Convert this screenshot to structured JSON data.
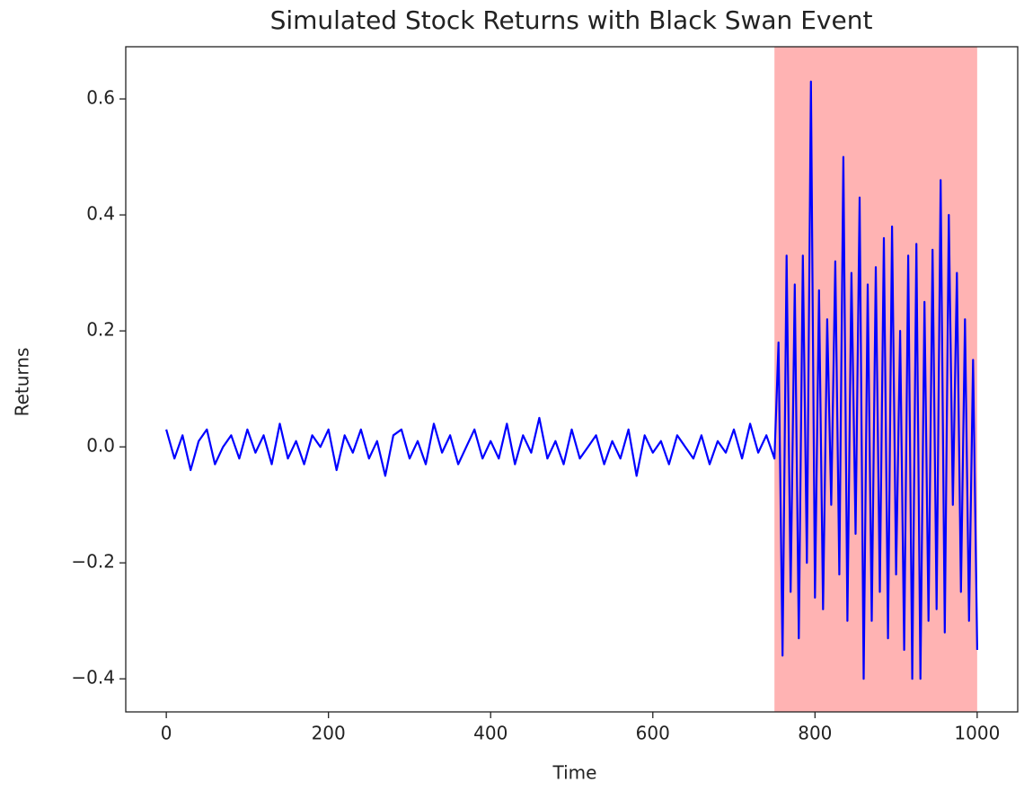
{
  "chart_data": {
    "type": "line",
    "title": "Simulated Stock Returns with Black Swan Event",
    "x_label": "Time",
    "y_label": "Returns",
    "x": [
      0,
      10,
      20,
      30,
      40,
      50,
      60,
      70,
      80,
      90,
      100,
      110,
      120,
      130,
      140,
      150,
      160,
      170,
      180,
      190,
      200,
      210,
      220,
      230,
      240,
      250,
      260,
      270,
      280,
      290,
      300,
      310,
      320,
      330,
      340,
      350,
      360,
      370,
      380,
      390,
      400,
      410,
      420,
      430,
      440,
      450,
      460,
      470,
      480,
      490,
      500,
      510,
      520,
      530,
      540,
      550,
      560,
      570,
      580,
      590,
      600,
      610,
      620,
      630,
      640,
      650,
      660,
      670,
      680,
      690,
      700,
      710,
      720,
      730,
      740,
      750,
      755,
      760,
      765,
      770,
      775,
      780,
      785,
      790,
      795,
      800,
      805,
      810,
      815,
      820,
      825,
      830,
      835,
      840,
      845,
      850,
      855,
      860,
      865,
      870,
      875,
      880,
      885,
      890,
      895,
      900,
      905,
      910,
      915,
      920,
      925,
      930,
      935,
      940,
      945,
      950,
      955,
      960,
      965,
      970,
      975,
      980,
      985,
      990,
      995,
      1000
    ],
    "series": [
      {
        "color": "#0000ff",
        "values": [
          0.03,
          -0.02,
          0.02,
          -0.04,
          0.01,
          0.03,
          -0.03,
          0.0,
          0.02,
          -0.02,
          0.03,
          -0.01,
          0.02,
          -0.03,
          0.04,
          -0.02,
          0.01,
          -0.03,
          0.02,
          0.0,
          0.03,
          -0.04,
          0.02,
          -0.01,
          0.03,
          -0.02,
          0.01,
          -0.05,
          0.02,
          0.03,
          -0.02,
          0.01,
          -0.03,
          0.04,
          -0.01,
          0.02,
          -0.03,
          0.0,
          0.03,
          -0.02,
          0.01,
          -0.02,
          0.04,
          -0.03,
          0.02,
          -0.01,
          0.05,
          -0.02,
          0.01,
          -0.03,
          0.03,
          -0.02,
          0.0,
          0.02,
          -0.03,
          0.01,
          -0.02,
          0.03,
          -0.05,
          0.02,
          -0.01,
          0.01,
          -0.03,
          0.02,
          0.0,
          -0.02,
          0.02,
          -0.03,
          0.01,
          -0.01,
          0.03,
          -0.02,
          0.04,
          -0.01,
          0.02,
          -0.02,
          0.18,
          -0.36,
          0.33,
          -0.25,
          0.28,
          -0.33,
          0.33,
          -0.2,
          0.63,
          -0.26,
          0.27,
          -0.28,
          0.22,
          -0.1,
          0.32,
          -0.22,
          0.5,
          -0.3,
          0.3,
          -0.15,
          0.43,
          -0.4,
          0.28,
          -0.3,
          0.31,
          -0.25,
          0.36,
          -0.33,
          0.38,
          -0.22,
          0.2,
          -0.35,
          0.33,
          -0.4,
          0.35,
          -0.4,
          0.25,
          -0.3,
          0.34,
          -0.28,
          0.46,
          -0.32,
          0.4,
          -0.1,
          0.3,
          -0.25,
          0.22,
          -0.3,
          0.15,
          -0.35
        ]
      }
    ],
    "span": {
      "xmin": 750,
      "xmax": 1000,
      "color": "#ffb3b3"
    },
    "xlim": [
      -50,
      1050
    ],
    "xticks": [
      0,
      200,
      400,
      600,
      800,
      1000
    ],
    "ylim": [
      -0.457,
      0.69
    ],
    "yticks": [
      {
        "value": -0.4,
        "label": "−0.4"
      },
      {
        "value": -0.2,
        "label": "−0.2"
      },
      {
        "value": 0,
        "label": "0.0"
      },
      0.2,
      0.4,
      0.6
    ]
  }
}
